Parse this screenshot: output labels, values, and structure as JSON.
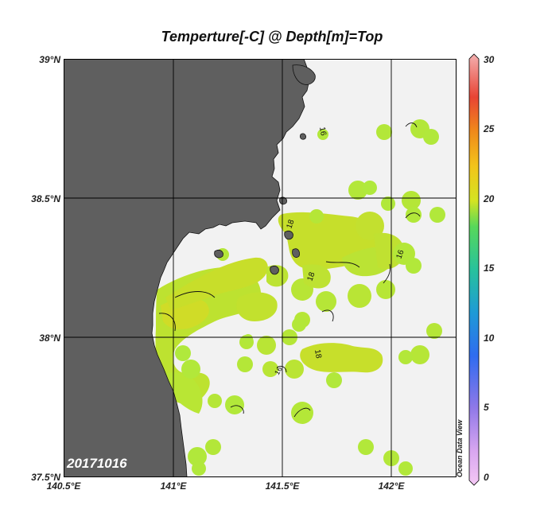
{
  "title": "Temperture[-C] @ Depth[m]=Top",
  "date_stamp": "20171016",
  "watermark": "Ocean Data View",
  "map": {
    "lat_labels": [
      "39°N",
      "38.5°N",
      "38°N",
      "37.5°N"
    ],
    "lon_labels": [
      "140.5°E",
      "141°E",
      "141.5°E",
      "142°E"
    ],
    "contour_labels": [
      "16",
      "18",
      "18",
      "16",
      "18",
      "16"
    ]
  },
  "colorbar": {
    "labels": [
      "30",
      "25",
      "20",
      "15",
      "10",
      "5",
      "0"
    ],
    "min": 0,
    "max": 30
  },
  "colors": {
    "land": "#5f5f5f",
    "ocean_nodata": "#f2f2f2",
    "data_green": "#aee83a",
    "data_yellow": "#d3e024"
  }
}
